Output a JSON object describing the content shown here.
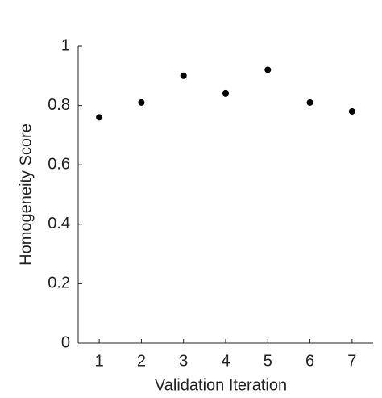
{
  "chart_data": {
    "type": "scatter",
    "x_label": "Validation Iteration",
    "y_label": "Homogeneity Score",
    "x": [
      1,
      2,
      3,
      4,
      5,
      6,
      7
    ],
    "values": [
      0.76,
      0.81,
      0.9,
      0.84,
      0.92,
      0.81,
      0.78
    ],
    "color": "#000000",
    "xlim": [
      0.5,
      7.5
    ],
    "xticks": [
      1,
      2,
      3,
      4,
      5,
      6,
      7
    ],
    "ylim": [
      0,
      1
    ],
    "yticks": [
      0,
      0.2,
      0.4,
      0.6,
      0.8,
      1
    ],
    "grid": false
  }
}
